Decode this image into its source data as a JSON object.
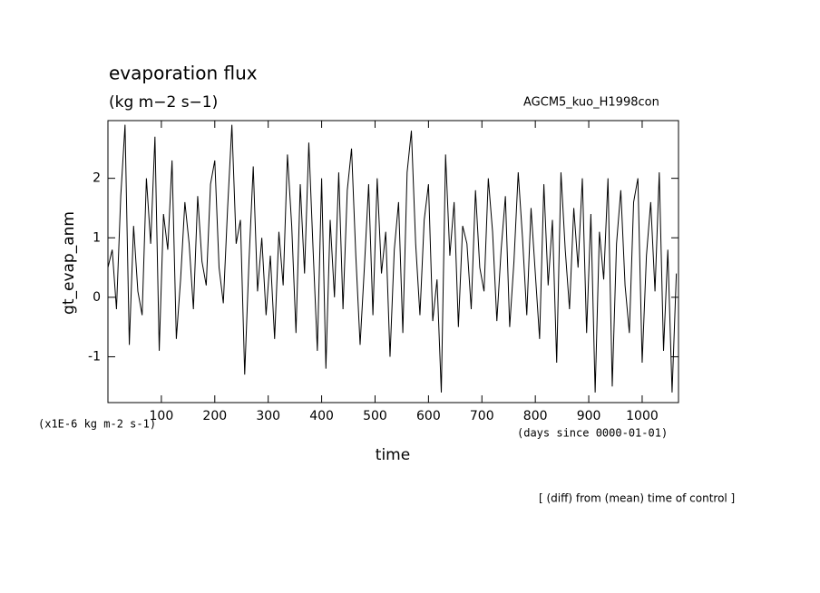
{
  "chart_data": {
    "type": "line",
    "title": "evaporation flux",
    "subtitle": "(kg m−2 s−1)",
    "run_label": "AGCM5_kuo_H1998con",
    "y_label": "gt_evap_anm",
    "x_label": "time",
    "y_units": "(x1E-6 kg m-2 s-1)",
    "x_units": "(days since 0000-01-01)",
    "footnote": "[ (diff) from (mean) time of control ]",
    "x": [
      0,
      8,
      16,
      24,
      32,
      40,
      48,
      56,
      64,
      72,
      80,
      88,
      96,
      104,
      112,
      120,
      128,
      136,
      144,
      152,
      160,
      168,
      176,
      184,
      192,
      200,
      208,
      216,
      224,
      232,
      240,
      248,
      256,
      264,
      272,
      280,
      288,
      296,
      304,
      312,
      320,
      328,
      336,
      344,
      352,
      360,
      368,
      376,
      384,
      392,
      400,
      408,
      416,
      424,
      432,
      440,
      448,
      456,
      464,
      472,
      480,
      488,
      496,
      504,
      512,
      520,
      528,
      536,
      544,
      552,
      560,
      568,
      576,
      584,
      592,
      600,
      608,
      616,
      624,
      632,
      640,
      648,
      656,
      664,
      672,
      680,
      688,
      696,
      704,
      712,
      720,
      728,
      736,
      744,
      752,
      760,
      768,
      776,
      784,
      792,
      800,
      808,
      816,
      824,
      832,
      840,
      848,
      856,
      864,
      872,
      880,
      888,
      896,
      904,
      912,
      920,
      928,
      936,
      944,
      952,
      960,
      968,
      976,
      984,
      992,
      1000,
      1008,
      1016,
      1024,
      1032,
      1040,
      1048,
      1056,
      1064
    ],
    "values": [
      0.5,
      0.8,
      -0.2,
      1.7,
      2.9,
      -0.8,
      1.2,
      0.1,
      -0.3,
      2.0,
      0.9,
      2.7,
      -0.9,
      1.4,
      0.8,
      2.3,
      -0.7,
      0.3,
      1.6,
      0.9,
      -0.2,
      1.7,
      0.6,
      0.2,
      1.9,
      2.3,
      0.5,
      -0.1,
      1.5,
      2.9,
      0.9,
      1.3,
      -1.3,
      0.6,
      2.2,
      0.1,
      1.0,
      -0.3,
      0.7,
      -0.7,
      1.1,
      0.2,
      2.4,
      1.2,
      -0.6,
      1.9,
      0.4,
      2.6,
      0.8,
      -0.9,
      2.0,
      -1.2,
      1.3,
      0.0,
      2.1,
      -0.2,
      1.8,
      2.5,
      0.7,
      -0.8,
      0.5,
      1.9,
      -0.3,
      2.0,
      0.4,
      1.1,
      -1.0,
      0.8,
      1.6,
      -0.6,
      2.1,
      2.8,
      0.9,
      -0.3,
      1.3,
      1.9,
      -0.4,
      0.3,
      -1.6,
      2.4,
      0.7,
      1.6,
      -0.5,
      1.2,
      0.9,
      -0.2,
      1.8,
      0.5,
      0.1,
      2.0,
      1.1,
      -0.4,
      0.8,
      1.7,
      -0.5,
      0.6,
      2.1,
      1.0,
      -0.3,
      1.5,
      0.4,
      -0.7,
      1.9,
      0.2,
      1.3,
      -1.1,
      2.1,
      0.8,
      -0.2,
      1.5,
      0.5,
      2.0,
      -0.6,
      1.4,
      -1.6,
      1.1,
      0.3,
      2.0,
      -1.5,
      0.9,
      1.8,
      0.2,
      -0.6,
      1.6,
      2.0,
      -1.1,
      0.7,
      1.6,
      0.1,
      2.1,
      -0.9,
      0.8,
      -1.6,
      0.4
    ],
    "color": "#000000",
    "xlim": [
      0,
      1068
    ],
    "xticks": [
      100,
      200,
      300,
      400,
      500,
      600,
      700,
      800,
      900,
      1000
    ],
    "ylim": [
      -1.77,
      2.97
    ],
    "yticks": [
      -1,
      0,
      1,
      2
    ]
  }
}
